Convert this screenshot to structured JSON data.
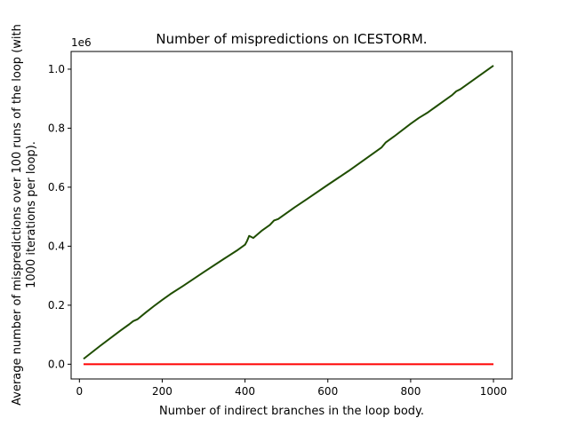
{
  "chart_data": {
    "type": "line",
    "title": "Number of mispredictions on ICESTORM.",
    "xlabel": "Number of indirect branches in the loop body.",
    "ylabel_lines": [
      "Average number of mispredictions over 100 runs of the loop (with",
      "1000 iterations per loop)."
    ],
    "y_offset_label": "1e6",
    "xlim": [
      -20,
      1045
    ],
    "ylim": [
      -0.05,
      1.06
    ],
    "x_ticks": [
      0,
      200,
      400,
      600,
      800,
      1000
    ],
    "x_tick_labels": [
      "0",
      "200",
      "400",
      "600",
      "800",
      "1000"
    ],
    "y_ticks": [
      0,
      0.2,
      0.4,
      0.6,
      0.8,
      1.0
    ],
    "y_tick_labels": [
      "0.0",
      "0.2",
      "0.4",
      "0.6",
      "0.8",
      "1.0"
    ],
    "grid": false,
    "series": [
      {
        "color": "#1f4d00",
        "x": [
          10,
          50,
          100,
          120,
          130,
          140,
          160,
          180,
          200,
          220,
          250,
          300,
          350,
          380,
          400,
          405,
          410,
          420,
          440,
          460,
          470,
          480,
          500,
          520,
          550,
          600,
          650,
          700,
          730,
          740,
          760,
          800,
          820,
          840,
          850,
          860,
          880,
          900,
          910,
          920,
          950,
          1000
        ],
        "y": [
          0.018,
          0.062,
          0.115,
          0.135,
          0.146,
          0.152,
          0.175,
          0.197,
          0.218,
          0.238,
          0.265,
          0.312,
          0.358,
          0.385,
          0.405,
          0.418,
          0.435,
          0.428,
          0.452,
          0.472,
          0.487,
          0.492,
          0.512,
          0.532,
          0.56,
          0.608,
          0.655,
          0.705,
          0.735,
          0.752,
          0.772,
          0.815,
          0.835,
          0.852,
          0.862,
          0.872,
          0.892,
          0.912,
          0.925,
          0.932,
          0.962,
          1.012
        ]
      },
      {
        "color": "#ff0000",
        "x": [
          10,
          1000
        ],
        "y": [
          0.0,
          0.0
        ]
      }
    ]
  }
}
